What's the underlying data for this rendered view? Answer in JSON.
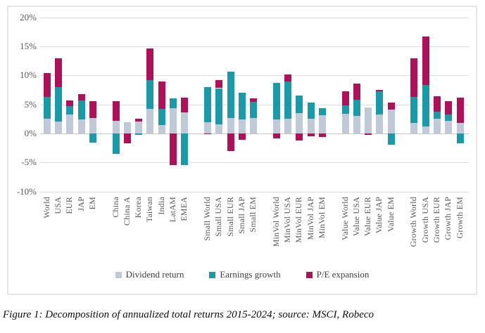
{
  "figure_caption": "Figure 1: Decomposition of annualized total returns 2015-2024; source: MSCI, Robeco",
  "ui_colors": {
    "chart_border": "#e6e6e6",
    "gridline": "#dcdcdc",
    "zero_line": "#c6c6c6",
    "axis_text": "#595959"
  },
  "chart_data": {
    "type": "bar",
    "stacked": true,
    "title": "",
    "xlabel": "",
    "ylabel": "",
    "ylim": [
      -10,
      20
    ],
    "yticks": [
      20,
      15,
      10,
      5,
      0,
      -5,
      -10
    ],
    "ytick_labels": [
      "20%",
      "15%",
      "10%",
      "5%",
      "0%",
      "-5%",
      "-10%"
    ],
    "grid": true,
    "legend_position": "bottom-center",
    "categories": [
      "World",
      "USA",
      "EUR",
      "JAP",
      "EM",
      "China",
      "China A",
      "Korea",
      "Taiwan",
      "India",
      "LatAM",
      "EMEA",
      "Small World",
      "Small USA",
      "Small EUR",
      "Small JAP",
      "Small EM",
      "MinVol World",
      "MinVol USA",
      "MinVol EUR",
      "MinVol JAP",
      "MinVol EM",
      "Value World",
      "Value USA",
      "Value EUR",
      "Value JAP",
      "Value EM",
      "Growth World",
      "Growth USA",
      "Growth EUR",
      "Growth JAP",
      "Growth EM"
    ],
    "group_sizes": [
      5,
      7,
      5,
      5,
      5,
      5
    ],
    "series": [
      {
        "name": "Dividend return",
        "color": "#c0c9d7",
        "values": [
          2.5,
          2.0,
          3.3,
          2.4,
          2.7,
          2.2,
          1.9,
          2.1,
          4.2,
          1.5,
          4.4,
          3.6,
          1.9,
          1.6,
          2.7,
          2.4,
          2.7,
          2.4,
          2.5,
          3.5,
          2.5,
          3.1,
          3.4,
          3.0,
          4.5,
          3.3,
          4.1,
          1.8,
          1.2,
          2.5,
          2.2,
          1.8
        ]
      },
      {
        "name": "Earnings growth",
        "color": "#189aa8",
        "values": [
          3.8,
          6.0,
          1.4,
          3.3,
          -1.6,
          -3.5,
          0.0,
          -0.3,
          5.0,
          2.7,
          1.7,
          -5.4,
          6.1,
          6.2,
          8.0,
          4.6,
          2.7,
          6.3,
          6.5,
          3.0,
          2.8,
          1.2,
          1.4,
          2.8,
          0.0,
          4.0,
          -1.9,
          4.5,
          7.2,
          1.2,
          1.1,
          -1.7
        ]
      },
      {
        "name": "P/E expansion",
        "color": "#b01057",
        "values": [
          4.1,
          5.0,
          1.0,
          1.1,
          2.9,
          3.4,
          -1.7,
          0.4,
          5.4,
          4.7,
          -5.4,
          2.6,
          -0.1,
          1.4,
          -3.0,
          -1.1,
          0.7,
          -0.8,
          1.2,
          -1.2,
          -0.5,
          -0.6,
          2.5,
          2.8,
          -0.3,
          0.2,
          1.2,
          6.7,
          8.3,
          2.7,
          2.3,
          4.4
        ]
      }
    ]
  }
}
